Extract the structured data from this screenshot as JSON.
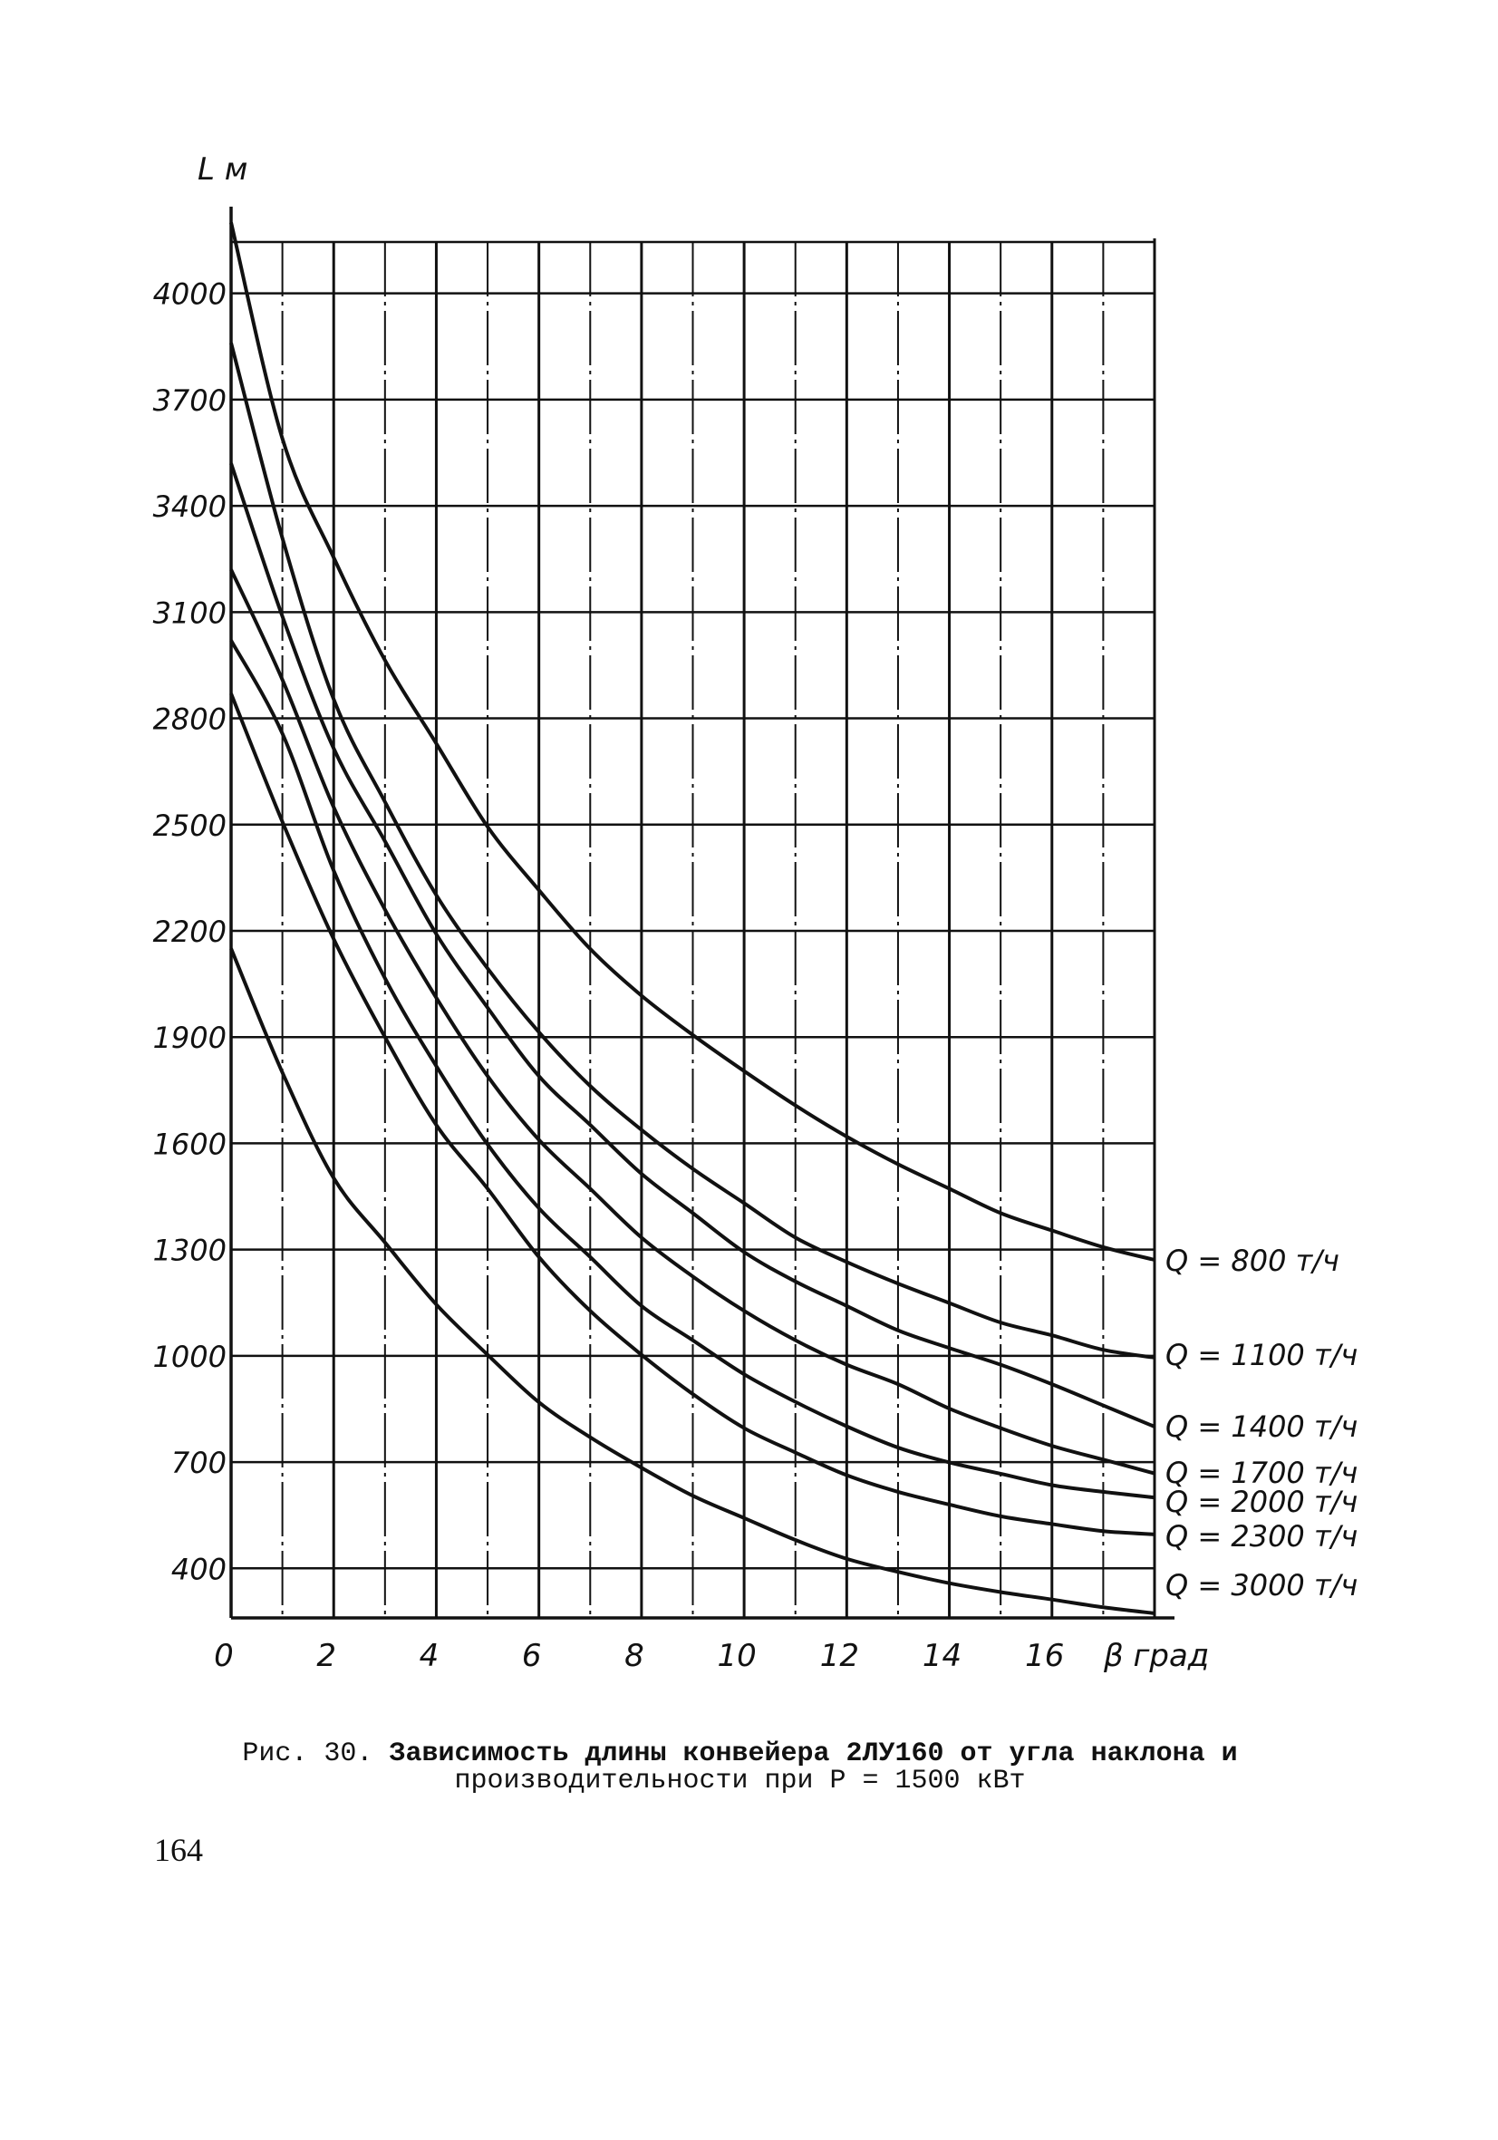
{
  "chart_data": {
    "type": "line",
    "title": "",
    "xlabel": "β град",
    "ylabel": "L м",
    "xlim": [
      0,
      18
    ],
    "ylim": [
      260,
      4145
    ],
    "grid": true,
    "x": [
      0,
      1,
      2,
      3,
      4,
      5,
      6,
      7,
      8,
      9,
      10,
      11,
      12,
      13,
      14,
      15,
      16,
      17,
      18
    ],
    "x_ticks": [
      "0",
      "2",
      "4",
      "6",
      "8",
      "10",
      "12",
      "14",
      "16"
    ],
    "x_tick_values": [
      0,
      2,
      4,
      6,
      8,
      10,
      12,
      14,
      16
    ],
    "y_ticks": [
      "4000",
      "3700",
      "3400",
      "3100",
      "2800",
      "2500",
      "2200",
      "1900",
      "1600",
      "1300",
      "1000",
      "700",
      "400"
    ],
    "y_tick_values": [
      4000,
      3700,
      3400,
      3100,
      2800,
      2500,
      2200,
      1900,
      1600,
      1300,
      1000,
      700,
      400
    ],
    "legend_placement": "right (curve-end labels)",
    "series": [
      {
        "name": "Q = 800 т/ч",
        "values": [
          4200,
          3590,
          3254,
          2964,
          2729,
          2494,
          2315,
          2149,
          2017,
          1906,
          1804,
          1707,
          1619,
          1541,
          1472,
          1403,
          1354,
          1307,
          1271
        ]
      },
      {
        "name": "Q = 1100 т/ч",
        "values": [
          3860,
          3309,
          2854,
          2564,
          2301,
          2094,
          1914,
          1762,
          1638,
          1528,
          1431,
          1334,
          1265,
          1204,
          1149,
          1094,
          1058,
          1017,
          995
        ]
      },
      {
        "name": "Q = 1400 т/ч",
        "values": [
          3520,
          3088,
          2715,
          2453,
          2191,
          1983,
          1790,
          1652,
          1514,
          1403,
          1293,
          1210,
          1141,
          1072,
          1022,
          975,
          920,
          860,
          800
        ]
      },
      {
        "name": "Q = 1700 т/ч",
        "values": [
          3220,
          2909,
          2549,
          2260,
          2011,
          1790,
          1610,
          1472,
          1334,
          1224,
          1127,
          1044,
          975,
          920,
          851,
          796,
          746,
          707,
          668
        ]
      },
      {
        "name": "Q = 2000 т/ч",
        "values": [
          3020,
          2757,
          2370,
          2066,
          1818,
          1597,
          1417,
          1279,
          1141,
          1044,
          948,
          870,
          801,
          741,
          699,
          667,
          635,
          616,
          600
        ]
      },
      {
        "name": "Q = 2300 т/ч",
        "values": [
          2870,
          2508,
          2177,
          1900,
          1652,
          1472,
          1279,
          1127,
          1003,
          892,
          796,
          727,
          663,
          616,
          580,
          547,
          525,
          505,
          496
        ]
      },
      {
        "name": "Q = 3000 т/ч",
        "values": [
          2150,
          1800,
          1502,
          1320,
          1145,
          1003,
          869,
          770,
          684,
          605,
          542,
          480,
          427,
          390,
          358,
          333,
          312,
          290,
          273
        ]
      }
    ]
  },
  "caption": {
    "fig": "Рис. 30.",
    "line1": "Зависимость длины конвейера 2ЛУ160 от угла наклона и",
    "line2": "производительности при P = 1500 кВт"
  },
  "page_number": "164"
}
